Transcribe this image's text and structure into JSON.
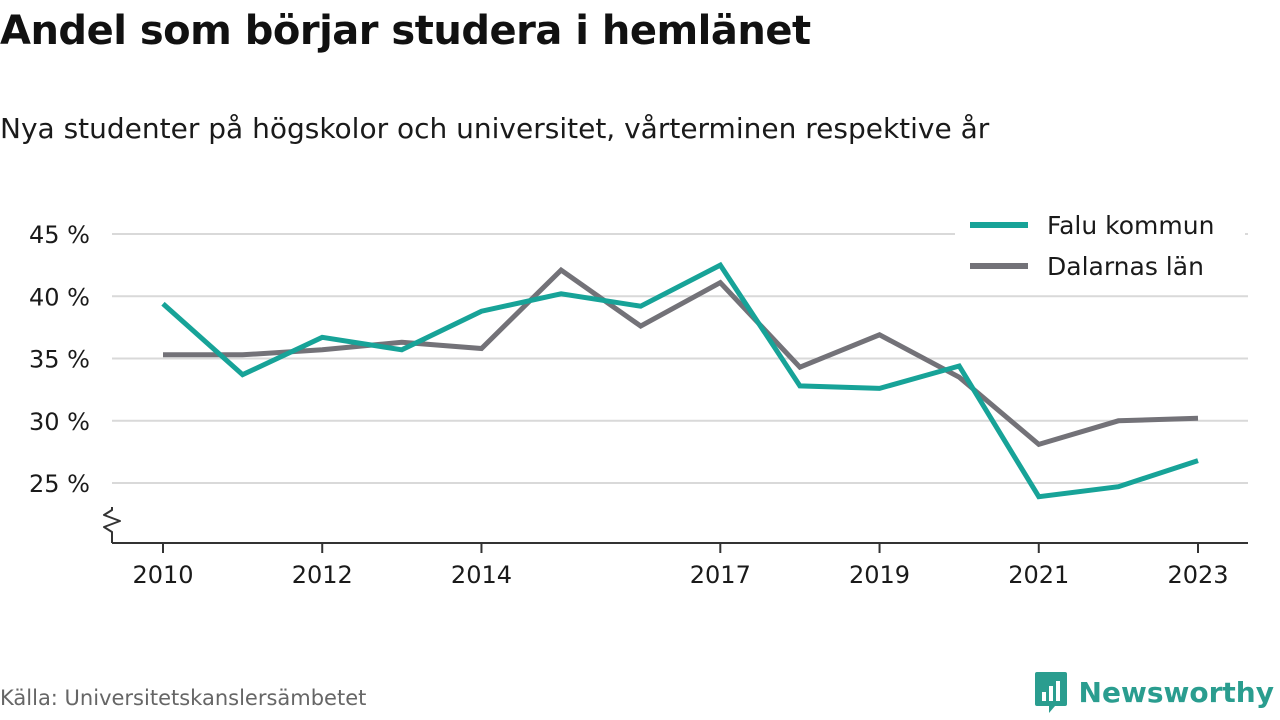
{
  "title": "Andel som börjar studera i hemlänet",
  "subtitle": "Nya studenter på högskolor och universitet, vårterminen respektive år",
  "source": "Källa: Universitetskanslersämbetet",
  "brand": "Newsworthy",
  "colors": {
    "falu": "#17a398",
    "dalarna": "#737278",
    "grid": "#d9d9d9",
    "axis": "#333333",
    "brand": "#2a9d8f"
  },
  "chart_data": {
    "type": "line",
    "x": [
      2010,
      2011,
      2012,
      2013,
      2014,
      2015,
      2016,
      2017,
      2018,
      2019,
      2020,
      2021,
      2022,
      2023
    ],
    "x_ticks": [
      2010,
      2012,
      2014,
      2017,
      2019,
      2021,
      2023
    ],
    "x_tick_labels": [
      "2010",
      "2012",
      "2014",
      "2017",
      "2019",
      "2021",
      "2023"
    ],
    "y_ticks": [
      25,
      30,
      35,
      40,
      45
    ],
    "y_tick_labels": [
      "25 %",
      "30 %",
      "35 %",
      "40 %",
      "45 %"
    ],
    "ylim": [
      20,
      47
    ],
    "y_axis_broken": true,
    "grid": true,
    "legend_position": "top-right",
    "series": [
      {
        "name": "Falu kommun",
        "color": "#17a398",
        "values": [
          39.4,
          33.7,
          36.7,
          35.7,
          38.8,
          40.2,
          39.2,
          42.5,
          32.8,
          32.6,
          34.4,
          23.9,
          24.7,
          26.8
        ]
      },
      {
        "name": "Dalarnas län",
        "color": "#737278",
        "values": [
          35.3,
          35.3,
          35.7,
          36.3,
          35.8,
          42.1,
          37.6,
          41.1,
          34.3,
          36.9,
          33.5,
          28.1,
          30.0,
          30.2
        ]
      }
    ]
  }
}
